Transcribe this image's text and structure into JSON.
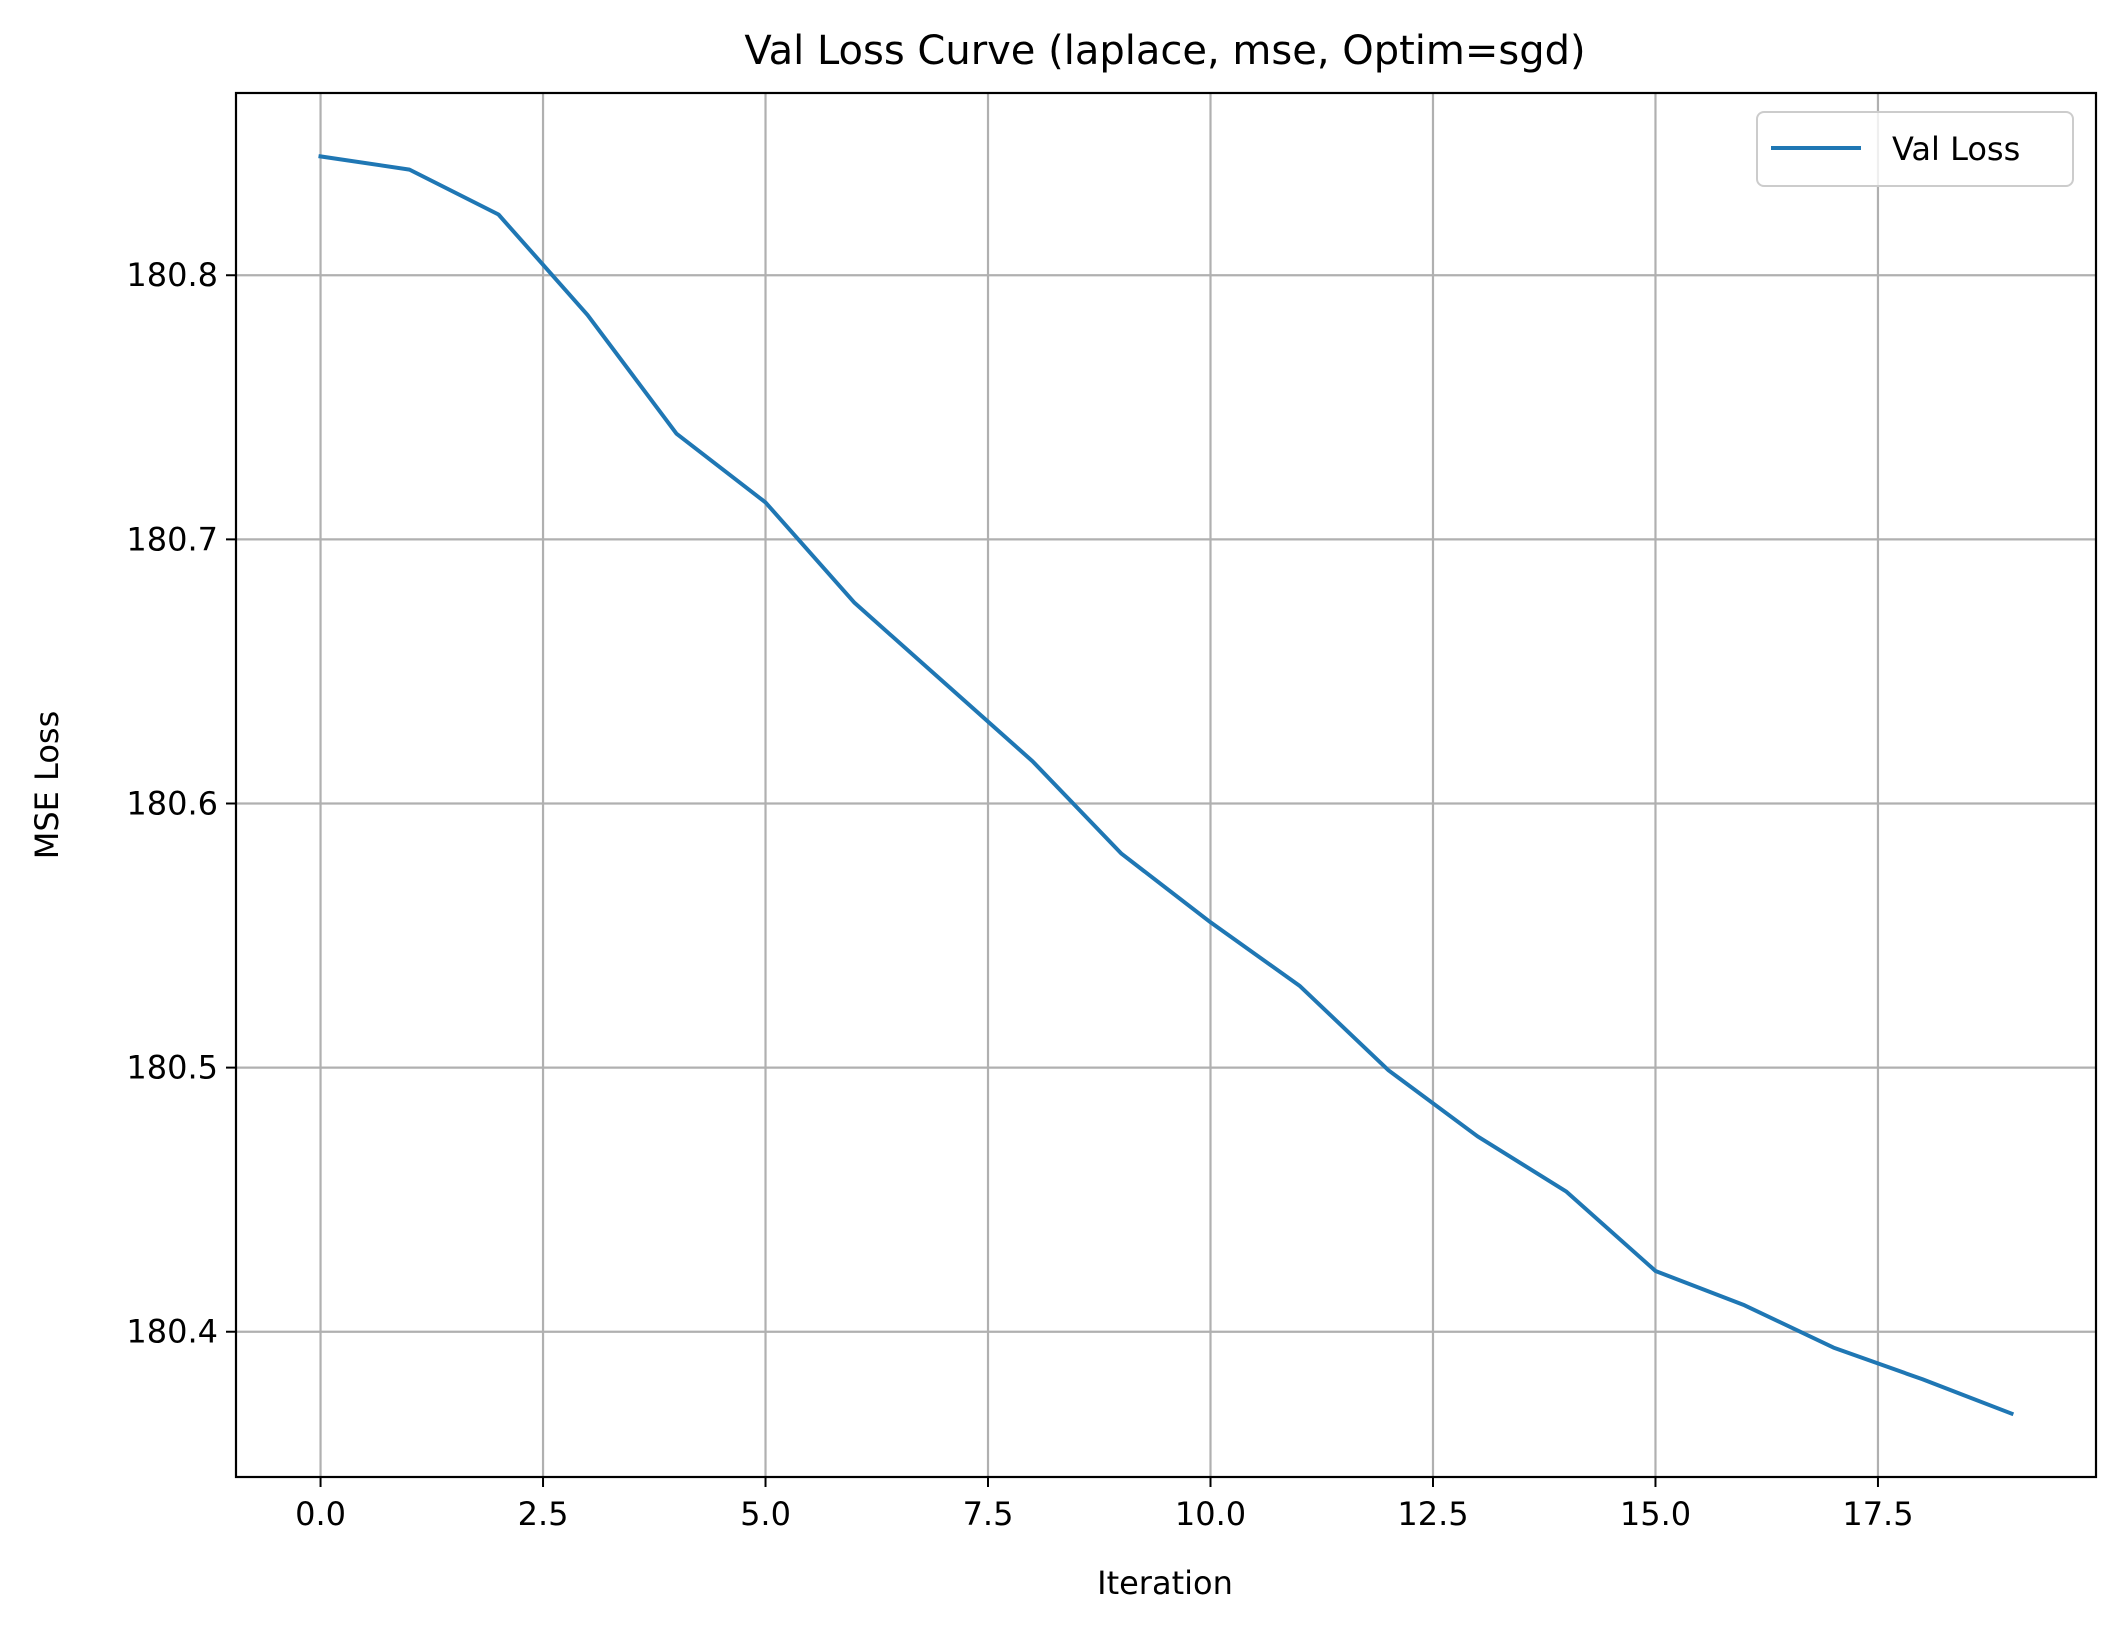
{
  "chart_data": {
    "type": "line",
    "title": "Val Loss Curve (laplace, mse, Optim=sgd)",
    "xlabel": "Iteration",
    "ylabel": "MSE Loss",
    "xlim": [
      -0.95,
      19.95
    ],
    "ylim": [
      180.345,
      180.869
    ],
    "xticks": [
      0.0,
      2.5,
      5.0,
      7.5,
      10.0,
      12.5,
      15.0,
      17.5
    ],
    "xtick_labels": [
      "0.0",
      "2.5",
      "5.0",
      "7.5",
      "10.0",
      "12.5",
      "15.0",
      "17.5"
    ],
    "yticks": [
      180.4,
      180.5,
      180.6,
      180.7,
      180.8
    ],
    "ytick_labels": [
      "180.4",
      "180.5",
      "180.6",
      "180.7",
      "180.8"
    ],
    "grid": true,
    "legend_position": "top-right",
    "series": [
      {
        "name": "Val Loss",
        "color": "#1f77b4",
        "x": [
          0,
          1,
          2,
          3,
          4,
          5,
          6,
          7,
          8,
          9,
          10,
          11,
          12,
          13,
          14,
          15,
          16,
          17,
          18,
          19
        ],
        "y": [
          180.845,
          180.84,
          180.823,
          180.785,
          180.74,
          180.714,
          180.676,
          180.646,
          180.616,
          180.581,
          180.555,
          180.531,
          180.499,
          180.474,
          180.453,
          180.423,
          180.41,
          180.394,
          180.382,
          180.369
        ]
      }
    ]
  }
}
